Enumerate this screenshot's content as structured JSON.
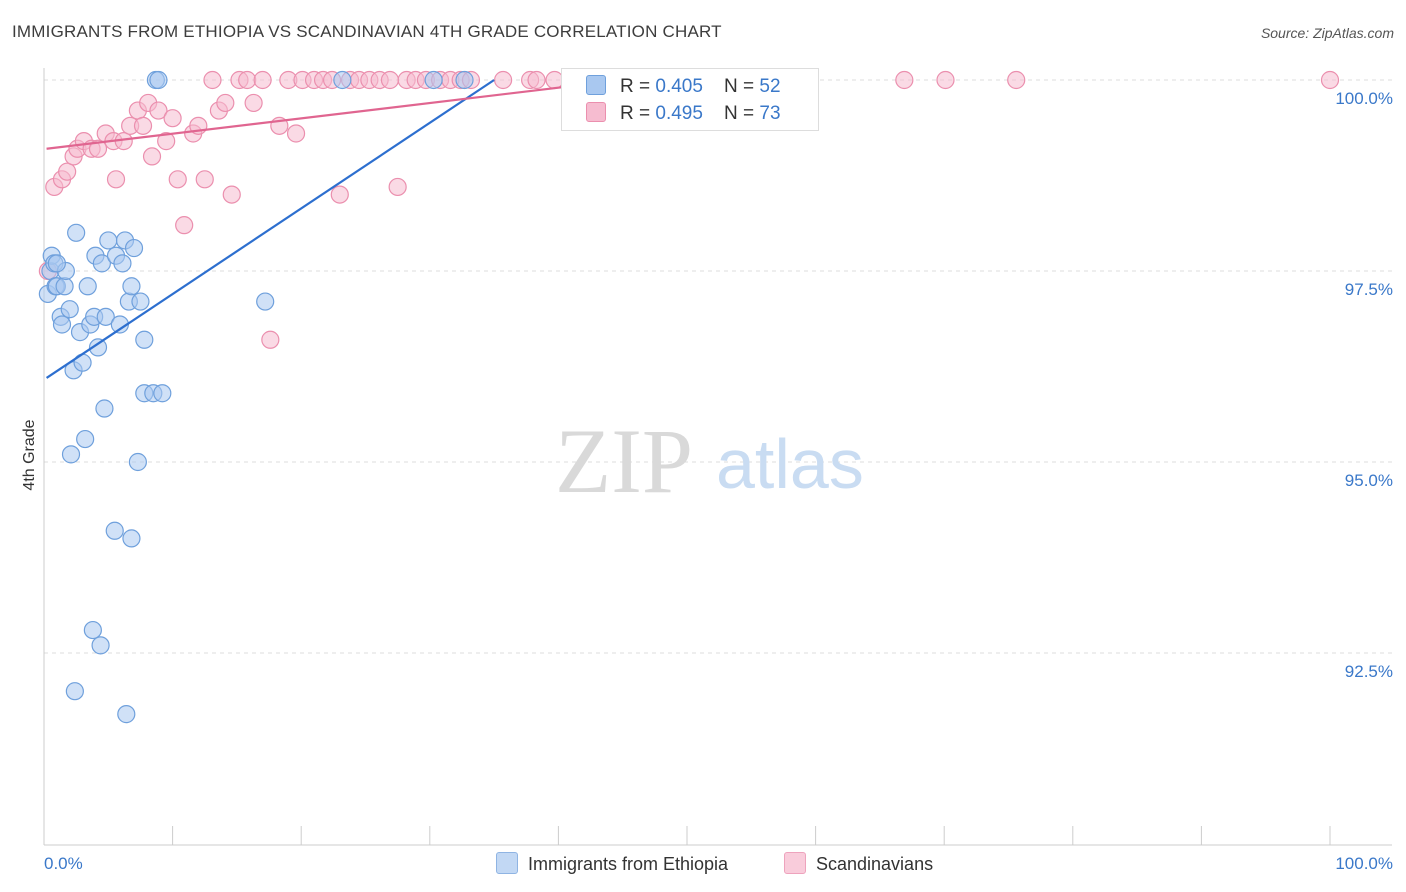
{
  "header": {
    "title": "IMMIGRANTS FROM ETHIOPIA VS SCANDINAVIAN 4TH GRADE CORRELATION CHART",
    "source": "Source: ZipAtlas.com"
  },
  "watermark": {
    "zip": "ZIP",
    "atlas": "atlas"
  },
  "colors": {
    "blue_fill": "#a9c8f0",
    "blue_stroke": "#6fa0dc",
    "blue_line": "#2d6fcf",
    "pink_fill": "#f6bcd0",
    "pink_stroke": "#eb8fae",
    "pink_line": "#e06590",
    "tick_label": "#3a78c9"
  },
  "legend": {
    "rows": [
      {
        "r_label": "R = ",
        "r_value": "0.405",
        "n_label": "N = ",
        "n_value": "52"
      },
      {
        "r_label": "R = ",
        "r_value": "0.495",
        "n_label": "N = ",
        "n_value": "73"
      }
    ]
  },
  "chart_data": {
    "type": "scatter",
    "title": "IMMIGRANTS FROM ETHIOPIA VS SCANDINAVIAN 4TH GRADE CORRELATION CHART",
    "xlabel": "",
    "ylabel": "4th Grade",
    "xlim": [
      0,
      100
    ],
    "ylim": [
      90.8,
      100.25
    ],
    "x_tick_labels": [
      "0.0%",
      "100.0%"
    ],
    "y_ticks": [
      100.0,
      97.5,
      95.0,
      92.5
    ],
    "y_tick_labels": [
      "100.0%",
      "97.5%",
      "95.0%",
      "92.5%"
    ],
    "grid": true,
    "legend_position": "top-center",
    "series": [
      {
        "name": "Immigrants from Ethiopia",
        "color": "#a9c8f0",
        "trendline": {
          "x": [
            0.2,
            35
          ],
          "y": [
            96.1,
            100.0
          ]
        },
        "points": [
          [
            0.3,
            97.2
          ],
          [
            0.5,
            97.5
          ],
          [
            0.6,
            97.7
          ],
          [
            0.8,
            97.6
          ],
          [
            0.9,
            97.3
          ],
          [
            1.0,
            97.3
          ],
          [
            1.3,
            96.9
          ],
          [
            1.4,
            96.8
          ],
          [
            1.6,
            97.3
          ],
          [
            1.7,
            97.5
          ],
          [
            2.0,
            97.0
          ],
          [
            2.1,
            95.1
          ],
          [
            2.3,
            96.2
          ],
          [
            2.5,
            98.0
          ],
          [
            2.8,
            96.7
          ],
          [
            3.0,
            96.3
          ],
          [
            3.2,
            95.3
          ],
          [
            3.4,
            97.3
          ],
          [
            3.6,
            96.8
          ],
          [
            3.8,
            92.8
          ],
          [
            3.9,
            96.9
          ],
          [
            4.0,
            97.7
          ],
          [
            4.2,
            96.5
          ],
          [
            4.4,
            92.6
          ],
          [
            4.5,
            97.6
          ],
          [
            4.7,
            95.7
          ],
          [
            4.8,
            96.9
          ],
          [
            5.0,
            97.9
          ],
          [
            5.5,
            94.1
          ],
          [
            5.6,
            97.7
          ],
          [
            5.9,
            96.8
          ],
          [
            6.1,
            97.6
          ],
          [
            6.3,
            97.9
          ],
          [
            6.6,
            97.1
          ],
          [
            6.8,
            97.3
          ],
          [
            7.0,
            97.8
          ],
          [
            7.3,
            95.0
          ],
          [
            7.5,
            97.1
          ],
          [
            7.8,
            96.6
          ],
          [
            7.8,
            95.9
          ],
          [
            2.4,
            92.0
          ],
          [
            6.4,
            91.7
          ],
          [
            6.8,
            94.0
          ],
          [
            8.5,
            95.9
          ],
          [
            9.2,
            95.9
          ],
          [
            8.7,
            100.0
          ],
          [
            8.9,
            100.0
          ],
          [
            17.2,
            97.1
          ],
          [
            23.2,
            100.0
          ],
          [
            30.3,
            100.0
          ],
          [
            32.7,
            100.0
          ],
          [
            1.0,
            97.6
          ]
        ]
      },
      {
        "name": "Scandinavians",
        "color": "#f6bcd0",
        "trendline": {
          "x": [
            0.2,
            45
          ],
          "y": [
            99.1,
            100.0
          ]
        },
        "points": [
          [
            0.8,
            98.6
          ],
          [
            1.4,
            98.7
          ],
          [
            1.8,
            98.8
          ],
          [
            2.3,
            99.0
          ],
          [
            2.6,
            99.1
          ],
          [
            3.1,
            99.2
          ],
          [
            3.7,
            99.1
          ],
          [
            4.2,
            99.1
          ],
          [
            4.8,
            99.3
          ],
          [
            5.4,
            99.2
          ],
          [
            5.6,
            98.7
          ],
          [
            6.2,
            99.2
          ],
          [
            6.7,
            99.4
          ],
          [
            7.3,
            99.6
          ],
          [
            7.7,
            99.4
          ],
          [
            8.1,
            99.7
          ],
          [
            8.4,
            99.0
          ],
          [
            8.9,
            99.6
          ],
          [
            9.5,
            99.2
          ],
          [
            10.0,
            99.5
          ],
          [
            10.4,
            98.7
          ],
          [
            10.9,
            98.1
          ],
          [
            11.6,
            99.3
          ],
          [
            12.0,
            99.4
          ],
          [
            12.5,
            98.7
          ],
          [
            13.1,
            100.0
          ],
          [
            13.6,
            99.6
          ],
          [
            14.1,
            99.7
          ],
          [
            14.6,
            98.5
          ],
          [
            15.2,
            100.0
          ],
          [
            15.8,
            100.0
          ],
          [
            16.3,
            99.7
          ],
          [
            17.0,
            100.0
          ],
          [
            17.6,
            96.6
          ],
          [
            18.3,
            99.4
          ],
          [
            19.0,
            100.0
          ],
          [
            19.6,
            99.3
          ],
          [
            20.1,
            100.0
          ],
          [
            21.0,
            100.0
          ],
          [
            21.7,
            100.0
          ],
          [
            22.4,
            100.0
          ],
          [
            23.0,
            98.5
          ],
          [
            23.8,
            100.0
          ],
          [
            24.5,
            100.0
          ],
          [
            25.3,
            100.0
          ],
          [
            26.1,
            100.0
          ],
          [
            26.9,
            100.0
          ],
          [
            27.5,
            98.6
          ],
          [
            28.2,
            100.0
          ],
          [
            28.9,
            100.0
          ],
          [
            29.7,
            100.0
          ],
          [
            30.8,
            100.0
          ],
          [
            31.6,
            100.0
          ],
          [
            32.4,
            100.0
          ],
          [
            33.2,
            100.0
          ],
          [
            35.7,
            100.0
          ],
          [
            37.8,
            100.0
          ],
          [
            38.3,
            100.0
          ],
          [
            39.7,
            100.0
          ],
          [
            41.9,
            100.0
          ],
          [
            44.9,
            100.0
          ],
          [
            46.3,
            100.0
          ],
          [
            47.5,
            100.0
          ],
          [
            49.8,
            100.0
          ],
          [
            51.6,
            100.0
          ],
          [
            54.5,
            100.0
          ],
          [
            56.3,
            100.0
          ],
          [
            59.4,
            100.0
          ],
          [
            66.9,
            100.0
          ],
          [
            70.1,
            100.0
          ],
          [
            75.6,
            100.0
          ],
          [
            100.0,
            100.0
          ],
          [
            0.3,
            97.5
          ]
        ]
      }
    ]
  },
  "bottom_legend": {
    "items": [
      {
        "label": "Immigrants from Ethiopia",
        "color": "#a9c8f0"
      },
      {
        "label": "Scandinavians",
        "color": "#f6bcd0"
      }
    ]
  }
}
